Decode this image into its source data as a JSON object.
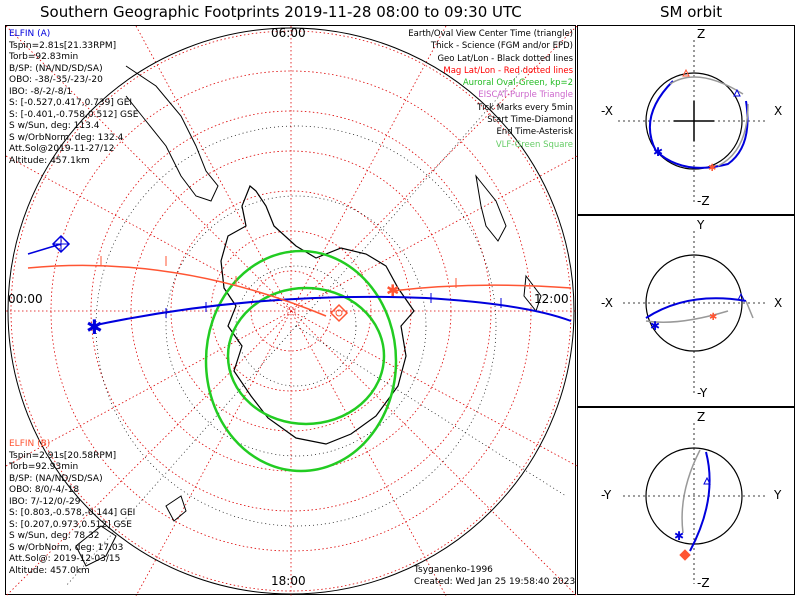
{
  "title": "Southern Geographic Footprints 2019-11-28 08:00 to 09:30 UTC",
  "sm_title": "SM orbit",
  "hours": {
    "top": "06:00",
    "left": "00:00",
    "right": "12:00",
    "bottom": "18:00"
  },
  "elfin_a": {
    "name": "ELFIN (A)",
    "lines": [
      "Tspin=2.81s[21.33RPM]",
      "Torb=92.83min",
      "B/SP: (NA/ND/SD/SA)",
      "OBO: -38/-35/-23/-20",
      "IBO: -8/-2/-8/1",
      "S: [-0.527,0.417,0.739] GEI",
      "S: [-0.401,-0.758,0.512] GSE",
      "S w/Sun, deg: 113.4",
      "S w/OrbNorm, deg: 132.4",
      "Att.Sol@2019-11-27/12",
      "Altitude: 457.1km"
    ]
  },
  "elfin_b": {
    "name": "ELFIN (B)",
    "lines": [
      "Tspin=2.91s[20.58RPM]",
      "Torb=92.93min",
      "B/SP: (NA/ND/SD/SA)",
      "OBO: 8/0/-4/-18",
      "IBO: 7/-12/0/-29",
      "S: [0.803,-0.578,-0.144] GEI",
      "S: [0.207,0.973,0.512] GSE",
      "S w/Sun, deg: 78.32",
      "S w/OrbNorm, deg: 17.03",
      "Att.Sol@: 2019-12-03/15",
      "Altitude: 457.0km"
    ]
  },
  "legend": [
    {
      "text": "Earth/Oval View Center Time (triangle)",
      "color": "#000000"
    },
    {
      "text": "Thick - Science (FGM and/or EPD)",
      "color": "#000000"
    },
    {
      "text": "Geo Lat/Lon - Black dotted lines",
      "color": "#000000"
    },
    {
      "text": "Mag Lat/Lon - Red dotted lines",
      "color": "#ff0000"
    },
    {
      "text": "Auroral Oval-Green, kp=2",
      "color": "#22bb22"
    },
    {
      "text": "EISCAT-Purple Triangle",
      "color": "#cc66cc"
    },
    {
      "text": "Tick Marks every 5min",
      "color": "#000000"
    },
    {
      "text": "Start Time-Diamond",
      "color": "#000000"
    },
    {
      "text": "End Time-Asterisk",
      "color": "#000000"
    },
    {
      "text": "VLF-Green Square",
      "color": "#66cc66"
    }
  ],
  "credits": {
    "author": "Tsyganenko-1996",
    "created": "Created: Wed Jan 25 19:58:40 2023"
  },
  "sm_panels": [
    {
      "top": "Z",
      "bottom": "-Z",
      "left": "-X",
      "right": "X"
    },
    {
      "top": "Y",
      "bottom": "-Y",
      "left": "-X",
      "right": "X"
    },
    {
      "top": "Z",
      "bottom": "-Z",
      "left": "-Y",
      "right": "Y"
    }
  ],
  "colors": {
    "elfin_a": "#0000dd",
    "elfin_b": "#ff5533",
    "oval": "#22cc22",
    "grid_geo": "#000000",
    "grid_mag": "#dd0000"
  }
}
